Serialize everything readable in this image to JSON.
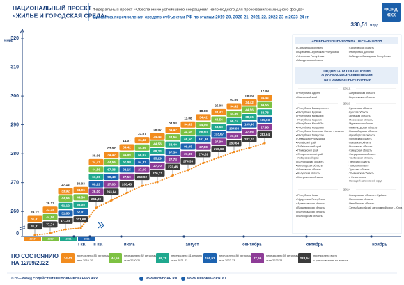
{
  "header": {
    "title": [
      "НАЦИОНАЛЬНЫЙ ПРОЕКТ",
      "«ЖИЛЬЕ И ГОРОДСКАЯ СРЕДА»"
    ],
    "logo": [
      "ФОНД",
      "ЖКХ"
    ],
    "total_value": "330,51",
    "total_unit": "млрд"
  },
  "chart_data": {
    "type": "line",
    "subtitle": "Федеральный проект «Обеспечение устойчивого сокращения непригодного для проживания жилищного фонда»",
    "title": "Динамика перечисления средств субъектам РФ по этапам 2019-20, 2020-21, 2021-22, 2022-23 и 2023-24 гг.",
    "ylabel": "млрд",
    "ylim": [
      0,
      320
    ],
    "yticks": [
      0,
      260,
      270,
      280,
      290,
      300,
      310,
      320
    ],
    "color": "#f28c1e",
    "periods": [
      "2019",
      "2020",
      "2021",
      "2022"
    ],
    "months": [
      "I кв.",
      "II кв.",
      "июль",
      "август",
      "сентябрь",
      "октябрь",
      "ноябрь"
    ],
    "categories": [
      "29.12",
      "29.12",
      "27.12",
      "30.03",
      "30.06",
      "07.07",
      "14.07",
      "21.07",
      "28.07",
      "04.08",
      "11.08",
      "18.08",
      "25.08",
      "01.09",
      "08.09",
      "12.09"
    ],
    "values": [
      31.31,
      77.74,
      171.46,
      201.68,
      261.3,
      263.84,
      266.43,
      268.92,
      270.21,
      272.46,
      274.33,
      276.82,
      278.63,
      280.64,
      282.02,
      283.64
    ],
    "value_labels": [
      "31,31",
      "77,74",
      "171,46",
      "201,68",
      "261,30",
      "263,84",
      "266,43",
      "268,92",
      "270,21",
      "272,46",
      "274,33",
      "276,82",
      "278,63",
      "280,64",
      "282,02",
      "283,64"
    ],
    "total_note": [
      "перечислено всего",
      "с учетом выплат по этапам"
    ],
    "series": [
      {
        "name": "этап 2019-20",
        "note": "перечислено 85 регионам",
        "color": "#f28c1e",
        "values": [
          31.31,
          33.18,
          33.92,
          34.06,
          34.42,
          34.42,
          34.42,
          34.42,
          34.42,
          34.42,
          34.42,
          34.42,
          34.42,
          34.42,
          34.42,
          34.42
        ],
        "value_labels": [
          "31,31",
          "33,18",
          "33,92",
          "34,06",
          "34,42",
          "34,42",
          "34,42",
          "34,42",
          "34,42",
          "34,42",
          "34,42",
          "34,42",
          "34,42",
          "34,42",
          "34,42",
          "34,42"
        ]
      },
      {
        "name": "этап 2020-21",
        "note": "перечислено 82 регионам",
        "color": "#7dc142",
        "values": [
          null,
          44.56,
          44.56,
          44.56,
          44.56,
          44.56,
          44.56,
          44.56,
          44.56,
          44.56,
          44.56,
          44.56,
          44.56,
          44.56,
          44.56,
          44.56
        ],
        "value_labels": [
          null,
          "44,56",
          "44,56",
          "44,56",
          "44,56",
          "44,56",
          "44,56",
          "44,56",
          "44,56",
          "44,56",
          "44,56",
          "44,56",
          "44,56",
          "44,56",
          "44,56",
          "44,56"
        ]
      },
      {
        "name": "этап 2021-22",
        "note": "перечислено 81 региону",
        "color": "#1fa88e",
        "values": [
          null,
          null,
          61.12,
          66.05,
          67.1,
          67.38,
          67.8,
          68.02,
          68.24,
          68.4,
          68.5,
          68.6,
          68.68,
          68.72,
          68.76,
          68.78
        ],
        "value_labels": [
          null,
          null,
          "61,12",
          "66,05",
          "67,10",
          "67,38",
          "67,80",
          "68,02",
          "68,24",
          "68,40",
          "68,50",
          "68,60",
          "68,68",
          "68,72",
          "68,76",
          "68,78"
        ]
      },
      {
        "name": "этап 2022-23",
        "note": "перечислено 80 регионам",
        "color": "#1d63b0",
        "values": [
          null,
          null,
          31.86,
          57.01,
          89.22,
          90.48,
          92.15,
          94.32,
          95.29,
          97.3,
          99.05,
          101.36,
          103.07,
          104.98,
          105.4,
          105.93
        ],
        "value_labels": [
          null,
          null,
          "31,86",
          "57,01",
          "89,22",
          "90,48",
          "92,15",
          "94,32",
          "95,29",
          "97,30",
          "99,05",
          "101,36",
          "103,07",
          "104,98",
          "105,40",
          "105,93"
        ]
      },
      {
        "name": "этап 2023-24",
        "note": "перечислено 59 регионам",
        "color": "#8e3c97",
        "values": [
          null,
          null,
          null,
          null,
          26.0,
          27.0,
          27.5,
          27.6,
          27.7,
          27.78,
          27.8,
          27.88,
          27.9,
          27.96,
          27.96,
          27.96
        ],
        "value_labels": [
          null,
          null,
          null,
          null,
          "26,00",
          "27,00",
          "27,50",
          "27,60",
          "27,70",
          "27,78",
          "27,80",
          "27,88",
          "27,90",
          "27,96",
          "27,96",
          "27,96"
        ]
      }
    ]
  },
  "panel": {
    "completed": {
      "title": "ЗАВЕРШИЛИ ПРОГРАММУ ПЕРЕСЕЛЕНИЯ",
      "left": [
        "• Сахалинская область",
        "• Карачаево-Черкесская Республика",
        "• Чеченская Республика",
        "• Магаданская область"
      ],
      "right": [
        "• Саратовская область",
        "• Республика Дагестан",
        "• Кабардино-Балкарская Республика"
      ]
    },
    "agreements": {
      "title": [
        "ПОДПИСАЛИ СОГЛАШЕНИЯ",
        "О ДОСРОЧНОМ ЗАВЕРШЕНИИ",
        "ПРОГРАММЫ ПЕРЕСЕЛЕНИЯ"
      ],
      "groups": [
        {
          "year": "2022",
          "left": [
            "• Республика Адыгея",
            "• Камчатский край"
          ],
          "right": [
            "• Астраханская область",
            "• Воронежская область"
          ]
        },
        {
          "year": "2023",
          "left": [
            "• Республика Башкортостан",
            "• Республика Бурятия",
            "• Республика Калмыкия",
            "• Республика Карелия",
            "• Республика Марий Эл",
            "• Республика Мордовия",
            "• Республика Северная Осетия – Алания",
            "• Республика Татарстан",
            "• Чувашская Республика",
            "• Алтайский край",
            "• Забайкальский край",
            "• Приморский край",
            "• Ставропольский край",
            "• Хабаровский край",
            "• Белгородская область",
            "• Вологодская область",
            "• Ивановская область",
            "• Калужская область",
            "• Костромская область"
          ],
          "right": [
            "• Курганская область",
            "• Курская область",
            "• Липецкая область",
            "• Московская область",
            "• Мурманская область",
            "• Нижегородская область",
            "• Новосибирская область",
            "• Оренбургская область",
            "• Орловская область",
            "• Псковская область",
            "• Ростовская область",
            "• Самарская область",
            "• Свердловская область",
            "• Тамбовская область",
            "• Тверская область",
            "• Томская область",
            "• Тульская область",
            "• Ульяновская область",
            "• г. Севастополь",
            "• Ненецкий автономный округ"
          ]
        },
        {
          "year": "2024",
          "left": [
            "• Республика Коми",
            "• Удмуртская Республика",
            "• Архангельская область",
            "• Владимирская область",
            "• Волгоградская область",
            "• Вологодская область"
          ],
          "right": [
            "• Кемеровская область – Кузбасс",
            "• Пензенская область",
            "• Челябинская область",
            "• Ханты-Мансийский автономный округ – Югра"
          ]
        }
      ]
    }
  },
  "status": [
    "ПО СОСТОЯНИЮ",
    "НА 12/09/2022"
  ],
  "footer": [
    "© ГК— ФОНД СОДЕЙСТВИЯ РЕФОРМИРОВАНИЮ ЖКХ",
    "WWW.FONDGKH.RU",
    "WWW.REFORMAGKH.RU"
  ]
}
